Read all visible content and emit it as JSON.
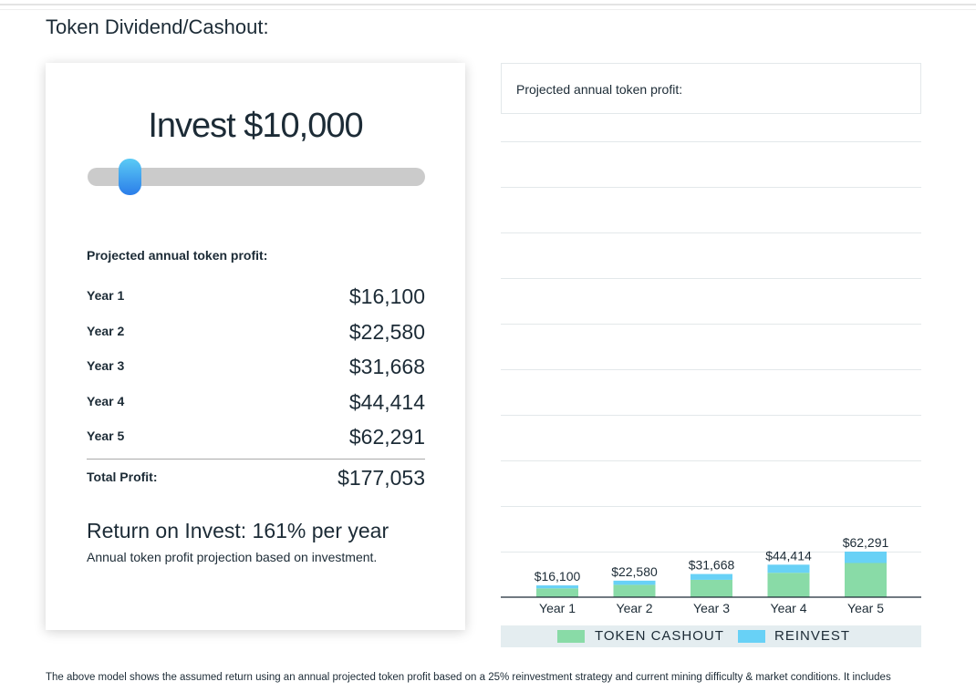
{
  "section_title": "Token Dividend/Cashout:",
  "calculator": {
    "invest_label": "Invest $10,000",
    "slider_value_fraction": 0.12,
    "heading": "Projected annual token profit:",
    "rows": [
      {
        "label": "Year 1",
        "value": "$16,100"
      },
      {
        "label": "Year 2",
        "value": "$22,580"
      },
      {
        "label": "Year 3",
        "value": "$31,668"
      },
      {
        "label": "Year 4",
        "value": "$44,414"
      },
      {
        "label": "Year 5",
        "value": "$62,291"
      }
    ],
    "total_label": "Total Profit:",
    "total_value": "$177,053",
    "roi": "Return on Invest: 161% per year",
    "roi_note": "Annual token profit projection based on investment."
  },
  "chart_data": {
    "type": "bar",
    "stacked": true,
    "title": "Projected annual token profit:",
    "categories": [
      "Year 1",
      "Year 2",
      "Year 3",
      "Year 4",
      "Year 5"
    ],
    "totals": [
      16100,
      22580,
      31668,
      44414,
      62291
    ],
    "data_labels": [
      "$16,100",
      "$22,580",
      "$31,668",
      "$44,414",
      "$62,291"
    ],
    "series": [
      {
        "name": "TOKEN CASHOUT",
        "color": "#89dba7",
        "values": [
          12075,
          16935,
          23751,
          33311,
          46718
        ]
      },
      {
        "name": "REINVEST",
        "color": "#68d1f6",
        "values": [
          4025,
          5645,
          7917,
          11103,
          15573
        ]
      }
    ],
    "grid": true,
    "legend": "bottom"
  },
  "footer": "The above model shows the assumed return using an annual projected token profit based on a 25% reinvestment strategy and current mining difficulty & market conditions. It includes"
}
